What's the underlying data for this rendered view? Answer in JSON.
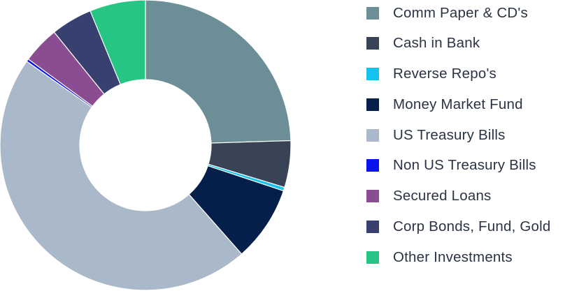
{
  "chart_data": {
    "type": "pie",
    "variant": "donut",
    "legend_position": "right",
    "series": [
      {
        "name": "Comm Paper & CD's",
        "value": 24.5,
        "color": "#6b8e97"
      },
      {
        "name": "Cash in Bank",
        "value": 5.2,
        "color": "#384456"
      },
      {
        "name": "Reverse Repo's",
        "value": 0.4,
        "color": "#12c3ef"
      },
      {
        "name": "Money Market Fund",
        "value": 8.4,
        "color": "#04204a"
      },
      {
        "name": "US Treasury Bills",
        "value": 46.3,
        "color": "#a9b9c9"
      },
      {
        "name": "Non US Treasury Bills",
        "value": 0.3,
        "color": "#0a12f0"
      },
      {
        "name": "Secured Loans",
        "value": 4.1,
        "color": "#8b4d91"
      },
      {
        "name": "Corp Bonds, Fund, Gold",
        "value": 4.6,
        "color": "#38406f"
      },
      {
        "name": "Other Investments",
        "value": 6.2,
        "color": "#27c584"
      }
    ]
  }
}
